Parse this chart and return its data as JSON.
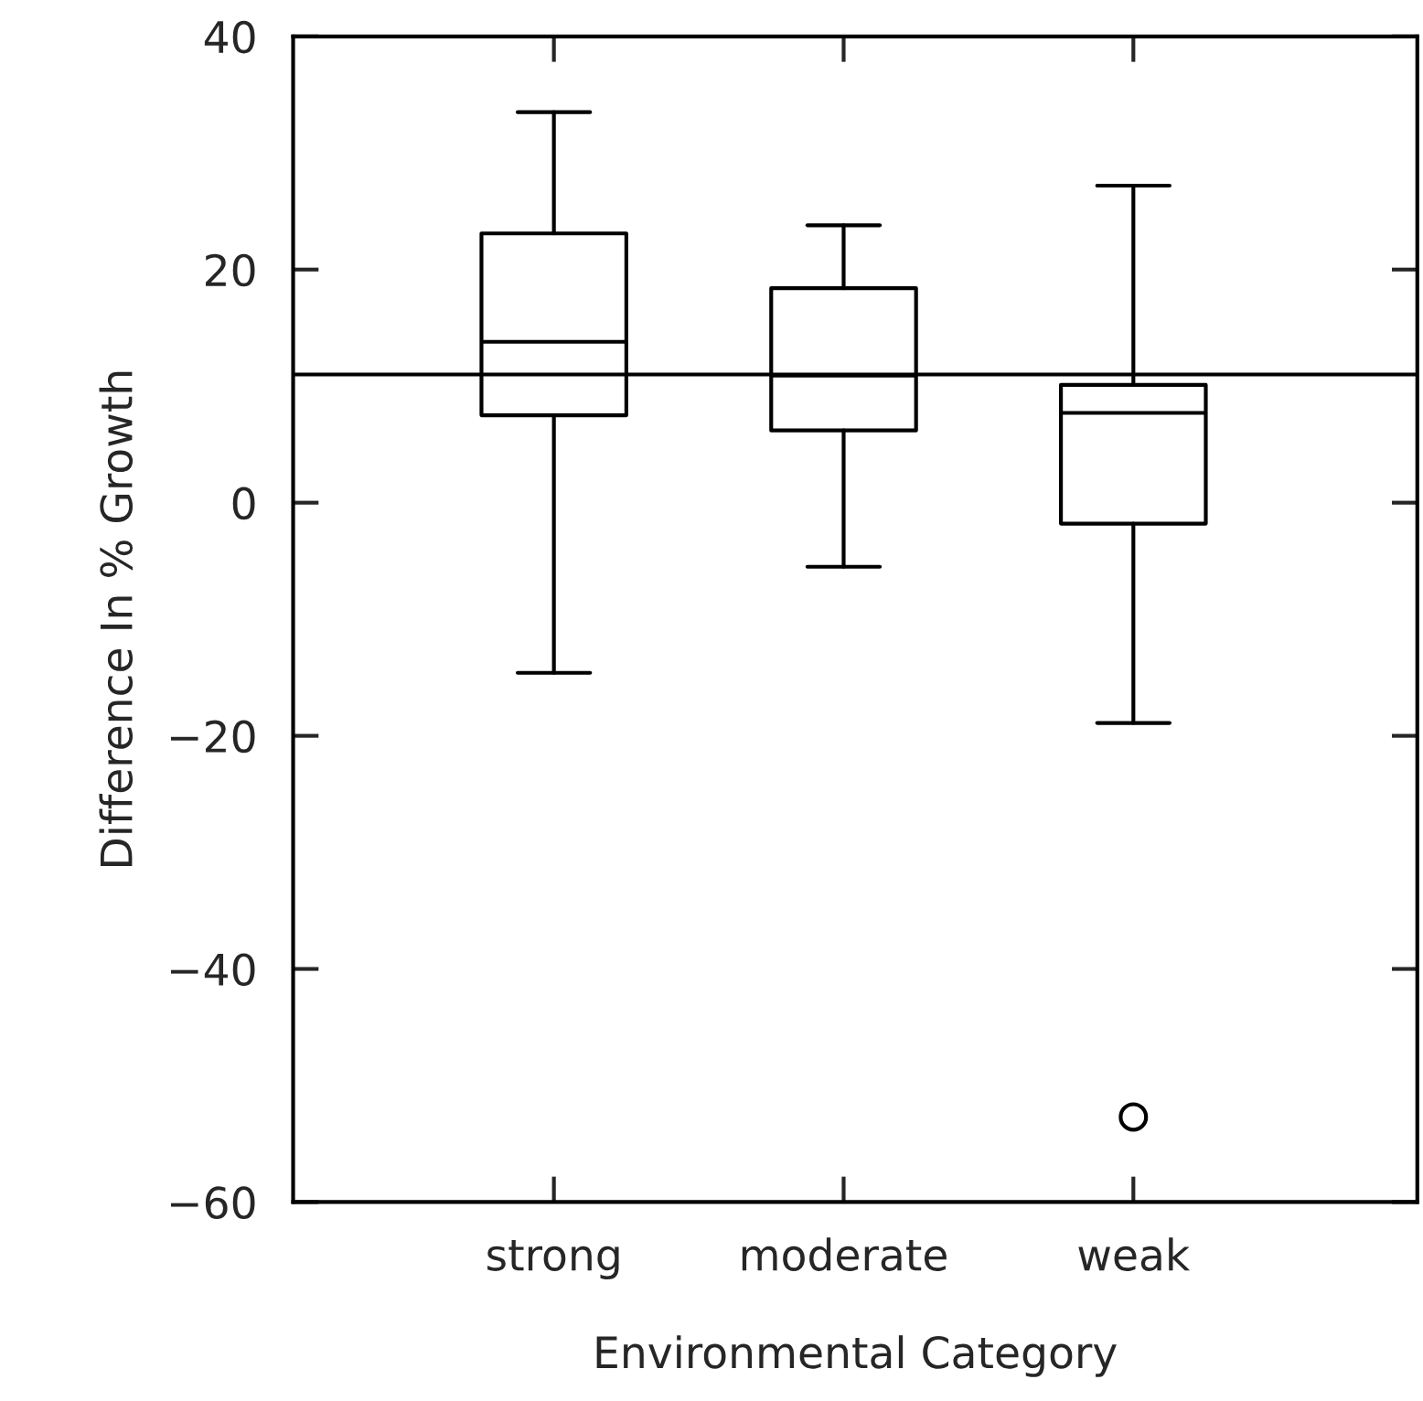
{
  "chart_data": {
    "type": "box",
    "xlabel": "Environmental Category",
    "ylabel": "Difference In % Growth",
    "categories": [
      "strong",
      "moderate",
      "weak"
    ],
    "boxes": [
      {
        "low": -14.6,
        "q1": 7.5,
        "median": 13.8,
        "q3": 23.1,
        "high": 33.5
      },
      {
        "low": -5.5,
        "q1": 6.2,
        "median": 10.9,
        "q3": 18.4,
        "high": 23.8
      },
      {
        "low": -18.9,
        "q1": -1.8,
        "median": 7.7,
        "q3": 10.1,
        "high": 27.2,
        "outliers": [
          -52.7
        ]
      }
    ],
    "ylim": [
      -60,
      40
    ],
    "yticks": [
      -60,
      -40,
      -20,
      0,
      20,
      40
    ],
    "ref_lines": [
      {
        "axis": "y",
        "value": 11
      }
    ],
    "grid": false,
    "legend": false
  }
}
